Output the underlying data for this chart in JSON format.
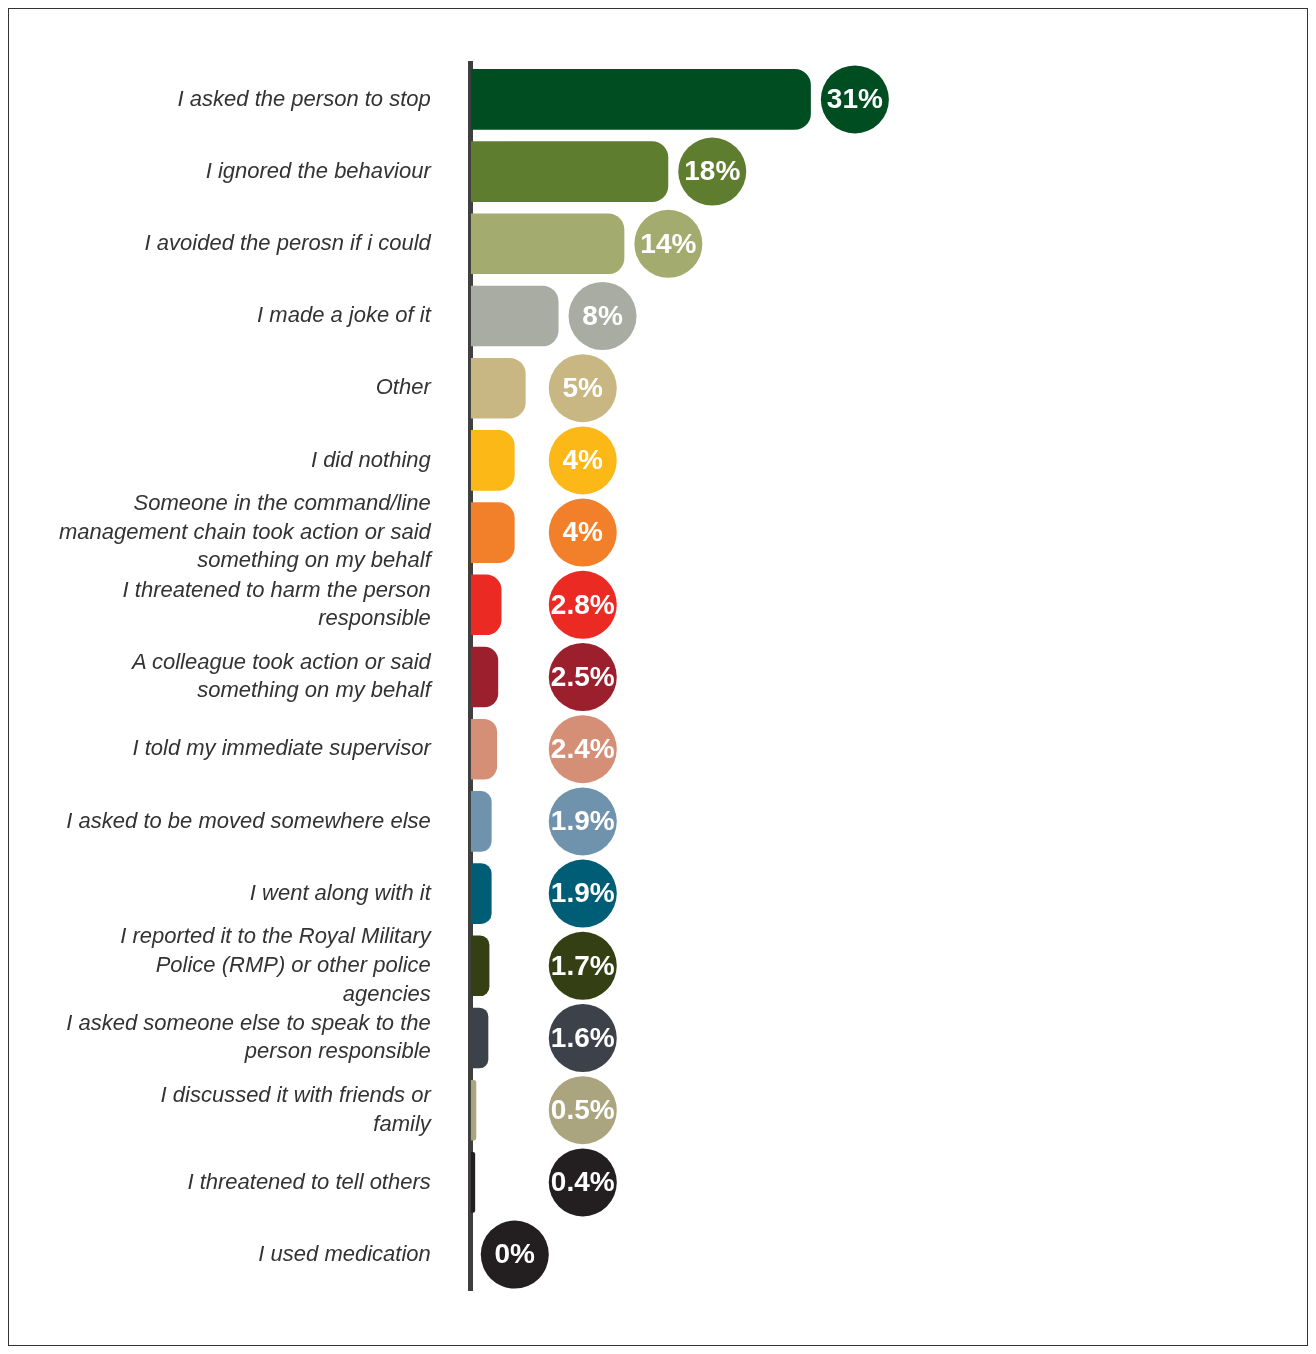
{
  "chart_data": {
    "type": "bar",
    "orientation": "horizontal",
    "categories": [
      "I asked the person to stop",
      "I ignored the behaviour",
      "I avoided the perosn if i could",
      "I made a joke of it",
      "Other",
      "I did nothing",
      "Someone in the command/line management chain took action or said something on my behalf",
      "I threatened to harm the person responsible",
      "A colleague took action or said something on my behalf",
      "I told my immediate supervisor",
      "I asked to be moved somewhere else",
      "I went along with it",
      "I reported it to the Royal Military Police (RMP) or other police agencies",
      "I asked someone else to speak to the person responsible",
      "I discussed it with friends or family",
      "I threatened to tell others",
      "I used medication"
    ],
    "values": [
      31,
      18,
      14,
      8,
      5,
      4,
      4,
      2.8,
      2.5,
      2.4,
      1.9,
      1.9,
      1.7,
      1.6,
      0.5,
      0.4,
      0
    ],
    "value_labels": [
      "31%",
      "18%",
      "14%",
      "8%",
      "5%",
      "4%",
      "4%",
      "2.8%",
      "2.5%",
      "2.4%",
      "1.9%",
      "1.9%",
      "1.7%",
      "1.6%",
      "0.5%",
      "0.4%",
      "0%"
    ],
    "colors": [
      "#004d22",
      "#5e7d2f",
      "#a3ac6e",
      "#a9aca2",
      "#c8b783",
      "#fbb816",
      "#f2802a",
      "#ec2a24",
      "#9c1f2e",
      "#d58f76",
      "#6f93ac",
      "#005d76",
      "#343f14",
      "#3d424a",
      "#aaa57f",
      "#231f20",
      "#231f20"
    ],
    "legend": false,
    "grid": false
  }
}
